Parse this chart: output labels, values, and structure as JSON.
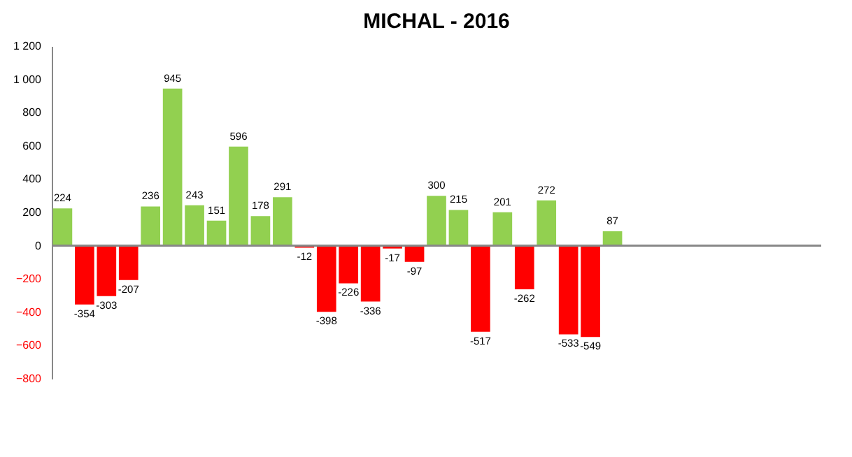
{
  "chart_data": {
    "type": "bar",
    "title": "MICHAL - 2016",
    "categories": [
      null,
      null,
      null,
      null,
      null,
      null,
      null,
      null,
      null,
      null,
      null,
      null,
      null,
      null,
      null,
      null,
      null,
      null,
      null,
      null,
      null,
      null,
      null,
      null,
      null,
      null,
      null,
      null,
      null,
      null,
      null,
      null,
      null,
      null,
      null
    ],
    "values": [
      224,
      -354,
      -303,
      -207,
      236,
      945,
      243,
      151,
      596,
      178,
      291,
      -12,
      -398,
      -226,
      -336,
      -17,
      -97,
      300,
      215,
      -517,
      201,
      -262,
      272,
      -533,
      -549,
      87,
      null,
      null,
      null,
      null,
      null,
      null,
      null,
      null,
      null
    ],
    "colors": [
      "#92d050",
      "#ff0000",
      "#ff0000",
      "#ff0000",
      "#92d050",
      "#92d050",
      "#92d050",
      "#92d050",
      "#92d050",
      "#92d050",
      "#92d050",
      "#ff0000",
      "#ff0000",
      "#ff0000",
      "#ff0000",
      "#ff0000",
      "#ff0000",
      "#92d050",
      "#92d050",
      "#ff0000",
      "#92d050",
      "#ff0000",
      "#92d050",
      "#ff0000",
      "#ff0000",
      "#92d050",
      "#92d050",
      "#92d050",
      "#92d050",
      "#92d050",
      "#92d050",
      "#92d050",
      "#92d050",
      "#92d050",
      "#92d050"
    ],
    "ylim": [
      -800,
      1200
    ],
    "yticks": [
      -800,
      -600,
      -400,
      -200,
      0,
      200,
      400,
      600,
      800,
      {
        "value": 1000,
        "label": "1 000"
      },
      {
        "value": 1200,
        "label": "1 200"
      }
    ],
    "data_labels": true
  }
}
